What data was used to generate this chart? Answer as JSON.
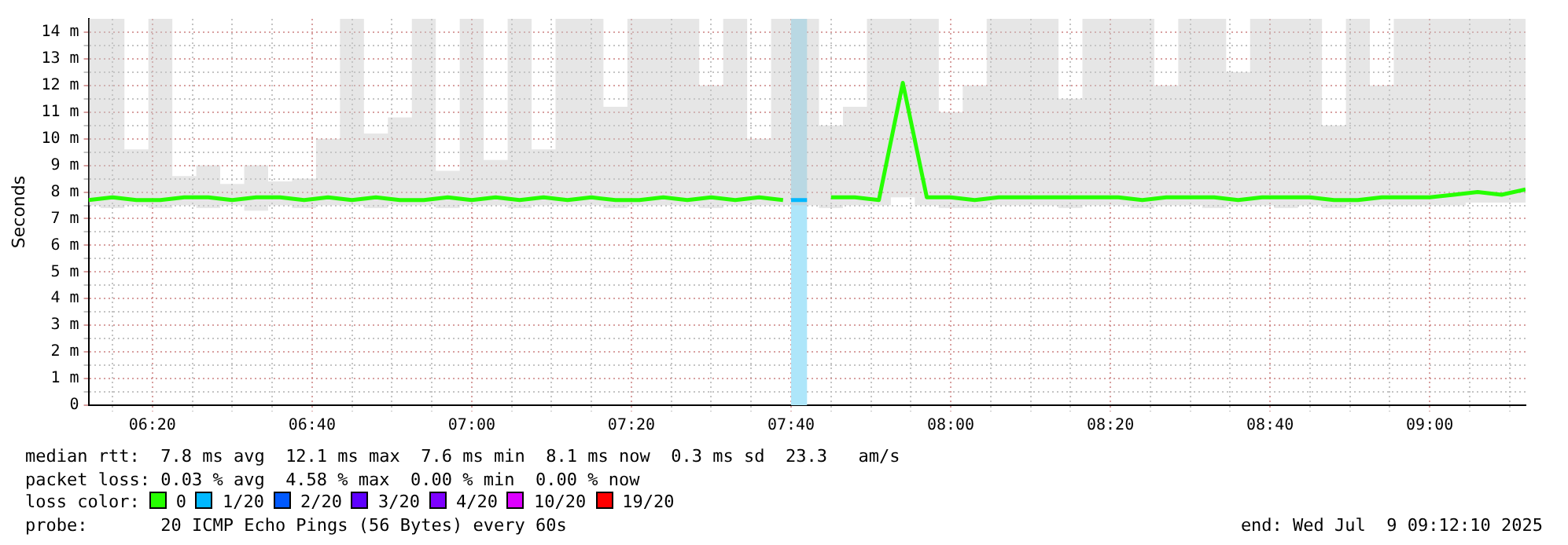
{
  "chart_data": {
    "type": "line",
    "ylabel": "Seconds",
    "x": [
      "2025-07-09T06:12",
      "2025-07-09T06:15",
      "2025-07-09T06:18",
      "2025-07-09T06:21",
      "2025-07-09T06:24",
      "2025-07-09T06:27",
      "2025-07-09T06:30",
      "2025-07-09T06:33",
      "2025-07-09T06:36",
      "2025-07-09T06:39",
      "2025-07-09T06:42",
      "2025-07-09T06:45",
      "2025-07-09T06:48",
      "2025-07-09T06:51",
      "2025-07-09T06:54",
      "2025-07-09T06:57",
      "2025-07-09T07:00",
      "2025-07-09T07:03",
      "2025-07-09T07:06",
      "2025-07-09T07:09",
      "2025-07-09T07:12",
      "2025-07-09T07:15",
      "2025-07-09T07:18",
      "2025-07-09T07:21",
      "2025-07-09T07:24",
      "2025-07-09T07:27",
      "2025-07-09T07:30",
      "2025-07-09T07:33",
      "2025-07-09T07:36",
      "2025-07-09T07:39",
      "2025-07-09T07:42",
      "2025-07-09T07:45",
      "2025-07-09T07:48",
      "2025-07-09T07:51",
      "2025-07-09T07:54",
      "2025-07-09T07:57",
      "2025-07-09T08:00",
      "2025-07-09T08:03",
      "2025-07-09T08:06",
      "2025-07-09T08:09",
      "2025-07-09T08:12",
      "2025-07-09T08:15",
      "2025-07-09T08:18",
      "2025-07-09T08:21",
      "2025-07-09T08:24",
      "2025-07-09T08:27",
      "2025-07-09T08:30",
      "2025-07-09T08:33",
      "2025-07-09T08:36",
      "2025-07-09T08:39",
      "2025-07-09T08:42",
      "2025-07-09T08:45",
      "2025-07-09T08:48",
      "2025-07-09T08:51",
      "2025-07-09T08:54",
      "2025-07-09T08:57",
      "2025-07-09T09:00",
      "2025-07-09T09:03",
      "2025-07-09T09:06",
      "2025-07-09T09:09",
      "2025-07-09T09:12"
    ],
    "series": [
      {
        "name": "0",
        "color": "#26ff00",
        "values": [
          7.7,
          7.8,
          7.7,
          7.7,
          7.8,
          7.8,
          7.7,
          7.8,
          7.8,
          7.7,
          7.8,
          7.7,
          7.8,
          7.7,
          7.7,
          7.8,
          7.7,
          7.8,
          7.7,
          7.8,
          7.7,
          7.8,
          7.7,
          7.7,
          7.8,
          7.7,
          7.8,
          7.7,
          7.8,
          7.7,
          null,
          7.8,
          7.8,
          7.7,
          12.1,
          7.8,
          7.8,
          7.7,
          7.8,
          7.8,
          7.8,
          7.8,
          7.8,
          7.8,
          7.7,
          7.8,
          7.8,
          7.8,
          7.7,
          7.8,
          7.8,
          7.8,
          7.7,
          7.7,
          7.8,
          7.8,
          7.8,
          7.9,
          8.0,
          7.9,
          8.1
        ],
        "lower": [
          7.5,
          7.4,
          7.5,
          7.4,
          7.5,
          7.4,
          7.5,
          7.3,
          7.5,
          7.4,
          7.5,
          7.5,
          7.4,
          7.5,
          7.5,
          7.4,
          7.5,
          7.5,
          7.4,
          7.5,
          7.5,
          7.5,
          7.4,
          7.5,
          7.5,
          7.5,
          7.4,
          7.5,
          7.5,
          7.5,
          7.5,
          7.4,
          7.5,
          7.5,
          7.8,
          7.5,
          7.4,
          7.4,
          7.5,
          7.5,
          7.5,
          7.4,
          7.5,
          7.5,
          7.4,
          7.5,
          7.5,
          7.4,
          7.5,
          7.5,
          7.4,
          7.5,
          7.4,
          7.5,
          7.5,
          7.5,
          7.5,
          7.5,
          7.6,
          7.6,
          7.6
        ],
        "upper": [
          14.5,
          14.5,
          9.6,
          14.5,
          8.6,
          9.0,
          8.3,
          9.0,
          8.4,
          8.5,
          10.0,
          14.5,
          10.2,
          10.8,
          14.5,
          8.8,
          14.5,
          9.2,
          14.5,
          9.6,
          14.5,
          14.5,
          11.2,
          14.5,
          14.5,
          14.5,
          12.0,
          14.5,
          10.0,
          14.5,
          14.5,
          10.5,
          11.2,
          14.5,
          14.5,
          14.5,
          11.0,
          12.0,
          14.5,
          14.5,
          14.5,
          11.5,
          14.5,
          14.5,
          14.5,
          12.0,
          14.5,
          14.5,
          12.5,
          14.5,
          14.5,
          14.5,
          10.5,
          14.5,
          12.0,
          14.5,
          14.5,
          14.5,
          14.5,
          14.5,
          14.5
        ]
      },
      {
        "name": "1/20",
        "color": "#00b8ff",
        "x": [
          "2025-07-09T07:40",
          "2025-07-09T07:42"
        ],
        "values": [
          7.7,
          7.7
        ]
      },
      {
        "name": "2/20",
        "color": "#0059ff",
        "values": [
          null,
          null,
          null,
          null,
          null,
          null,
          null,
          null,
          null,
          null,
          null,
          null,
          null,
          null,
          null,
          null,
          null,
          null,
          null,
          null,
          null,
          null,
          null,
          null,
          null,
          null,
          null,
          null,
          null,
          null,
          null,
          null,
          null,
          null,
          null,
          null,
          null,
          null,
          null,
          null,
          null,
          null,
          null,
          null,
          null,
          null,
          null,
          null,
          null,
          null,
          null,
          null,
          null,
          null,
          null,
          null,
          null,
          null,
          null,
          null,
          null
        ]
      },
      {
        "name": "3/20",
        "color": "#5e00ff",
        "values": [
          null,
          null,
          null,
          null,
          null,
          null,
          null,
          null,
          null,
          null,
          null,
          null,
          null,
          null,
          null,
          null,
          null,
          null,
          null,
          null,
          null,
          null,
          null,
          null,
          null,
          null,
          null,
          null,
          null,
          null,
          null,
          null,
          null,
          null,
          null,
          null,
          null,
          null,
          null,
          null,
          null,
          null,
          null,
          null,
          null,
          null,
          null,
          null,
          null,
          null,
          null,
          null,
          null,
          null,
          null,
          null,
          null,
          null,
          null,
          null,
          null
        ]
      },
      {
        "name": "4/20",
        "color": "#7e00ff",
        "values": [
          null,
          null,
          null,
          null,
          null,
          null,
          null,
          null,
          null,
          null,
          null,
          null,
          null,
          null,
          null,
          null,
          null,
          null,
          null,
          null,
          null,
          null,
          null,
          null,
          null,
          null,
          null,
          null,
          null,
          null,
          null,
          null,
          null,
          null,
          null,
          null,
          null,
          null,
          null,
          null,
          null,
          null,
          null,
          null,
          null,
          null,
          null,
          null,
          null,
          null,
          null,
          null,
          null,
          null,
          null,
          null,
          null,
          null,
          null,
          null,
          null
        ]
      },
      {
        "name": "10/20",
        "color": "#dd00ff",
        "values": [
          null,
          null,
          null,
          null,
          null,
          null,
          null,
          null,
          null,
          null,
          null,
          null,
          null,
          null,
          null,
          null,
          null,
          null,
          null,
          null,
          null,
          null,
          null,
          null,
          null,
          null,
          null,
          null,
          null,
          null,
          null,
          null,
          null,
          null,
          null,
          null,
          null,
          null,
          null,
          null,
          null,
          null,
          null,
          null,
          null,
          null,
          null,
          null,
          null,
          null,
          null,
          null,
          null,
          null,
          null,
          null,
          null,
          null,
          null,
          null,
          null
        ]
      },
      {
        "name": "19/20",
        "color": "#ff0000",
        "values": [
          null,
          null,
          null,
          null,
          null,
          null,
          null,
          null,
          null,
          null,
          null,
          null,
          null,
          null,
          null,
          null,
          null,
          null,
          null,
          null,
          null,
          null,
          null,
          null,
          null,
          null,
          null,
          null,
          null,
          null,
          null,
          null,
          null,
          null,
          null,
          null,
          null,
          null,
          null,
          null,
          null,
          null,
          null,
          null,
          null,
          null,
          null,
          null,
          null,
          null,
          null,
          null,
          null,
          null,
          null,
          null,
          null,
          null,
          null,
          null,
          null
        ]
      }
    ],
    "bands": [
      {
        "axis": "x",
        "from": "2025-07-09T07:40",
        "to": "2025-07-09T07:42",
        "color": "#aee6fa"
      }
    ],
    "xlim": [
      "2025-07-09T06:12",
      "2025-07-09T09:12"
    ],
    "xticks": [
      {
        "value": "2025-07-09T06:15",
        "label": null
      },
      {
        "value": "2025-07-09T06:20",
        "label": "06:20"
      },
      {
        "value": "2025-07-09T06:25",
        "label": null
      },
      {
        "value": "2025-07-09T06:30",
        "label": null
      },
      {
        "value": "2025-07-09T06:35",
        "label": null
      },
      {
        "value": "2025-07-09T06:40",
        "label": "06:40"
      },
      {
        "value": "2025-07-09T06:45",
        "label": null
      },
      {
        "value": "2025-07-09T06:50",
        "label": null
      },
      {
        "value": "2025-07-09T06:55",
        "label": null
      },
      {
        "value": "2025-07-09T07:00",
        "label": "07:00"
      },
      {
        "value": "2025-07-09T07:05",
        "label": null
      },
      {
        "value": "2025-07-09T07:10",
        "label": null
      },
      {
        "value": "2025-07-09T07:15",
        "label": null
      },
      {
        "value": "2025-07-09T07:20",
        "label": "07:20"
      },
      {
        "value": "2025-07-09T07:25",
        "label": null
      },
      {
        "value": "2025-07-09T07:30",
        "label": null
      },
      {
        "value": "2025-07-09T07:35",
        "label": null
      },
      {
        "value": "2025-07-09T07:40",
        "label": "07:40"
      },
      {
        "value": "2025-07-09T07:45",
        "label": null
      },
      {
        "value": "2025-07-09T07:50",
        "label": null
      },
      {
        "value": "2025-07-09T07:55",
        "label": null
      },
      {
        "value": "2025-07-09T08:00",
        "label": "08:00"
      },
      {
        "value": "2025-07-09T08:05",
        "label": null
      },
      {
        "value": "2025-07-09T08:10",
        "label": null
      },
      {
        "value": "2025-07-09T08:15",
        "label": null
      },
      {
        "value": "2025-07-09T08:20",
        "label": "08:20"
      },
      {
        "value": "2025-07-09T08:25",
        "label": null
      },
      {
        "value": "2025-07-09T08:30",
        "label": null
      },
      {
        "value": "2025-07-09T08:35",
        "label": null
      },
      {
        "value": "2025-07-09T08:40",
        "label": "08:40"
      },
      {
        "value": "2025-07-09T08:45",
        "label": null
      },
      {
        "value": "2025-07-09T08:50",
        "label": null
      },
      {
        "value": "2025-07-09T08:55",
        "label": null
      },
      {
        "value": "2025-07-09T09:00",
        "label": "09:00"
      },
      {
        "value": "2025-07-09T09:05",
        "label": null
      },
      {
        "value": "2025-07-09T09:10",
        "label": null
      }
    ],
    "ylim": [
      0,
      14.5
    ],
    "yticks": [
      {
        "value": 0,
        "label": "0"
      },
      {
        "value": 0.5,
        "label": null
      },
      {
        "value": 1,
        "label": "1 m"
      },
      {
        "value": 1.5,
        "label": null
      },
      {
        "value": 2,
        "label": "2 m"
      },
      {
        "value": 2.5,
        "label": null
      },
      {
        "value": 3,
        "label": "3 m"
      },
      {
        "value": 3.5,
        "label": null
      },
      {
        "value": 4,
        "label": "4 m"
      },
      {
        "value": 4.5,
        "label": null
      },
      {
        "value": 5,
        "label": "5 m"
      },
      {
        "value": 5.5,
        "label": null
      },
      {
        "value": 6,
        "label": "6 m"
      },
      {
        "value": 6.5,
        "label": null
      },
      {
        "value": 7,
        "label": "7 m"
      },
      {
        "value": 7.5,
        "label": null
      },
      {
        "value": 8,
        "label": "8 m"
      },
      {
        "value": 8.5,
        "label": null
      },
      {
        "value": 9,
        "label": "9 m"
      },
      {
        "value": 9.5,
        "label": null
      },
      {
        "value": 10,
        "label": "10 m"
      },
      {
        "value": 10.5,
        "label": null
      },
      {
        "value": 11,
        "label": "11 m"
      },
      {
        "value": 11.5,
        "label": null
      },
      {
        "value": 12,
        "label": "12 m"
      },
      {
        "value": 12.5,
        "label": null
      },
      {
        "value": 13,
        "label": "13 m"
      },
      {
        "value": 13.5,
        "label": null
      },
      {
        "value": 14,
        "label": "14 m"
      }
    ],
    "grid": true,
    "legend": "bottom",
    "legend_title": "loss color:",
    "marker": "none",
    "line_style": "solid",
    "annotations": [
      "median rtt:  7.8 ms avg  12.1 ms max  7.6 ms min  8.1 ms now  0.3 ms sd  23.3   am/s",
      "packet loss: 0.03 % avg  4.58 % max  0.00 % min  0.00 % now",
      "probe:       20 ICMP Echo Pings (56 Bytes) every 60s",
      "end: Wed Jul  9 09:12:10 2025"
    ]
  }
}
